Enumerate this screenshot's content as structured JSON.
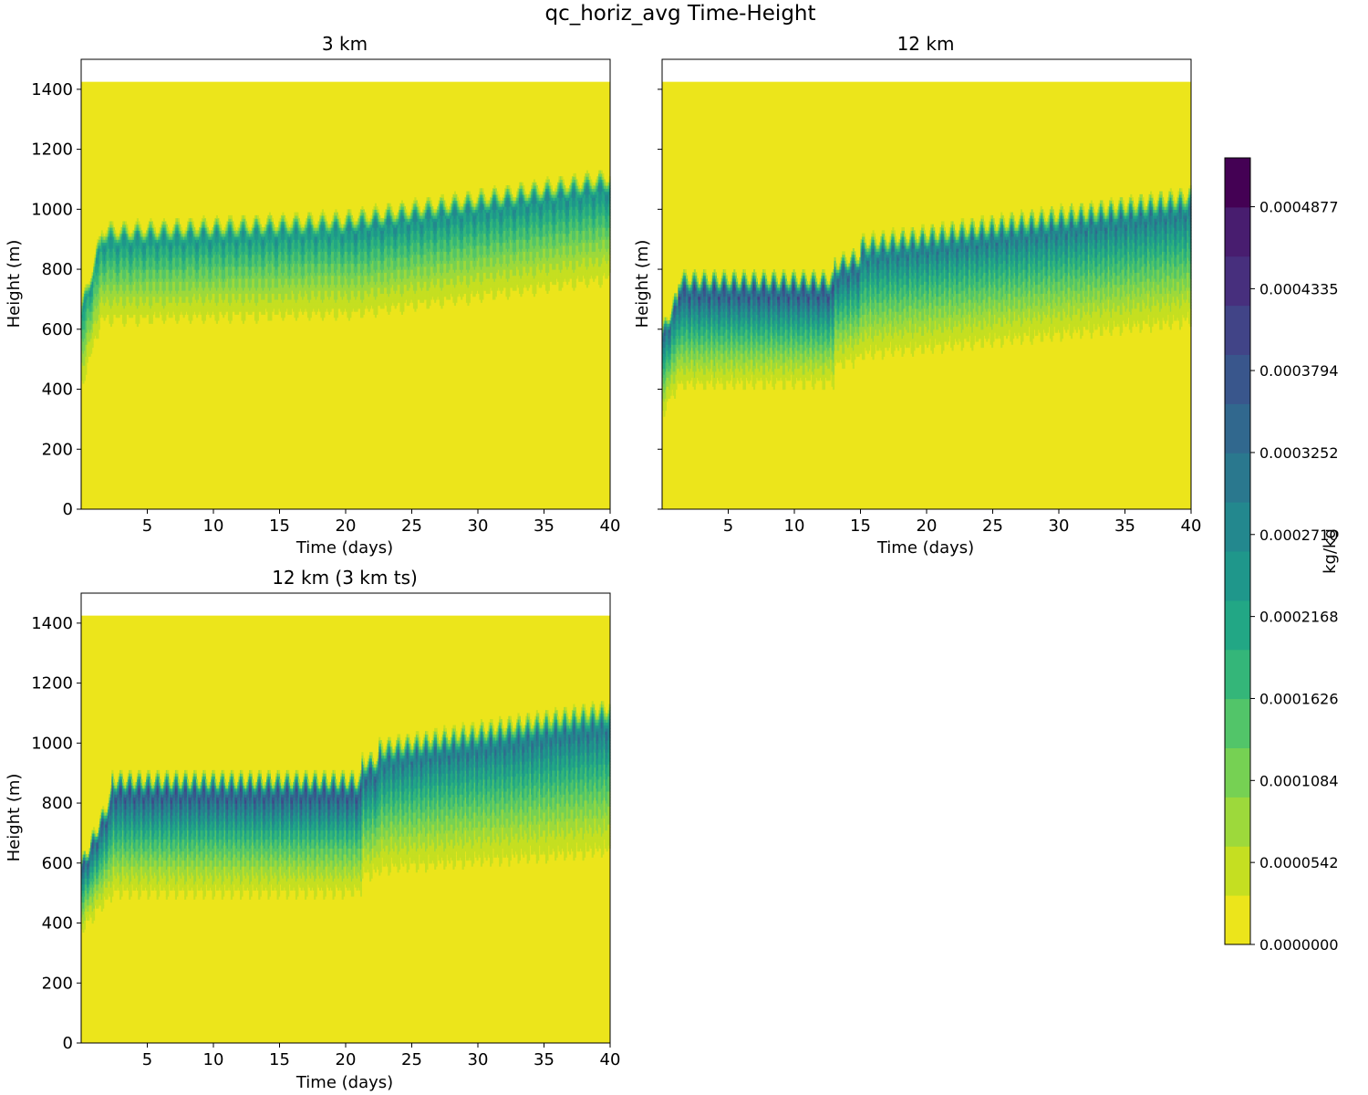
{
  "figure": {
    "title": "qc_horiz_avg Time-Height"
  },
  "colorbar": {
    "label": "kg/kg",
    "range": [
      0.0,
      0.00052
    ],
    "levels": 19,
    "tick_values": [
      0.0,
      5.42e-05,
      0.0001084,
      0.0001626,
      0.0002168,
      0.000271,
      0.0003252,
      0.0003794,
      0.0004335,
      0.0004877
    ],
    "tick_labels": [
      "0.0000000",
      "0.0000542",
      "0.0001084",
      "0.0001626",
      "0.0002168",
      "0.0002710",
      "0.0003252",
      "0.0003794",
      "0.0004335",
      "0.0004877"
    ],
    "colors": [
      "#ece51b",
      "#c5df21",
      "#9dd93b",
      "#76d153",
      "#52c569",
      "#34b679",
      "#22a785",
      "#1f978b",
      "#23888e",
      "#2a788e",
      "#31688e",
      "#39568c",
      "#414487",
      "#472f7d",
      "#481d6f",
      "#440154"
    ]
  },
  "chart_data": [
    {
      "type": "heatmap",
      "id": "p3km",
      "title": "3 km",
      "xlabel": "Time (days)",
      "ylabel": "Height (m)",
      "xlim": [
        0,
        40
      ],
      "ylim": [
        0,
        1500
      ],
      "xticks": [
        5,
        10,
        15,
        20,
        25,
        30,
        35,
        40
      ],
      "yticks": [
        0,
        200,
        400,
        600,
        800,
        1000,
        1200,
        1400
      ],
      "show_ytick_labels": true,
      "domain_top": 1425,
      "oscillation_period_days": 1,
      "segments": [
        {
          "t0": 0.0,
          "t1": 1.5,
          "base": [
            330,
            540
          ],
          "top": [
            680,
            920
          ],
          "peak": 0.00032
        },
        {
          "t0": 1.5,
          "t1": 20.0,
          "base": [
            540,
            555
          ],
          "top": [
            940,
            980
          ],
          "peak": 0.00034
        },
        {
          "t0": 20.0,
          "t1": 40.0,
          "base": [
            555,
            670
          ],
          "top": [
            980,
            1120
          ],
          "peak": 0.00036
        }
      ]
    },
    {
      "type": "heatmap",
      "id": "p12km",
      "title": "12 km",
      "xlabel": "Time (days)",
      "ylabel": "Height (m)",
      "xlim": [
        0,
        40
      ],
      "ylim": [
        0,
        1500
      ],
      "xticks": [
        5,
        10,
        15,
        20,
        25,
        30,
        35,
        40
      ],
      "yticks": [
        0,
        200,
        400,
        600,
        800,
        1000,
        1200,
        1400
      ],
      "show_ytick_labels": false,
      "domain_top": 1425,
      "oscillation_period_days": 0.75,
      "segments": [
        {
          "t0": 0.0,
          "t1": 1.2,
          "base": [
            260,
            340
          ],
          "top": [
            600,
            730
          ],
          "peak": 0.00046
        },
        {
          "t0": 1.2,
          "t1": 13.0,
          "base": [
            340,
            345
          ],
          "top": [
            780,
            780
          ],
          "peak": 0.00051
        },
        {
          "t0": 13.0,
          "t1": 15.0,
          "base": [
            400,
            420
          ],
          "top": [
            830,
            860
          ],
          "peak": 0.00046
        },
        {
          "t0": 15.0,
          "t1": 40.0,
          "base": [
            420,
            520
          ],
          "top": [
            900,
            1060
          ],
          "peak": 0.00042
        }
      ]
    },
    {
      "type": "heatmap",
      "id": "p12km3ts",
      "title": "12 km (3 km ts)",
      "xlabel": "Time (days)",
      "ylabel": "Height (m)",
      "xlim": [
        0,
        40
      ],
      "ylim": [
        0,
        1500
      ],
      "xticks": [
        5,
        10,
        15,
        20,
        25,
        30,
        35,
        40
      ],
      "yticks": [
        0,
        200,
        400,
        600,
        800,
        1000,
        1200,
        1400
      ],
      "show_ytick_labels": true,
      "domain_top": 1425,
      "oscillation_period_days": 0.7,
      "segments": [
        {
          "t0": 0.0,
          "t1": 2.3,
          "base": [
            330,
            420
          ],
          "top": [
            600,
            840
          ],
          "peak": 0.00048
        },
        {
          "t0": 2.3,
          "t1": 21.2,
          "base": [
            420,
            425
          ],
          "top": [
            890,
            890
          ],
          "peak": 0.00051
        },
        {
          "t0": 21.2,
          "t1": 22.5,
          "base": [
            470,
            480
          ],
          "top": [
            950,
            960
          ],
          "peak": 0.00047
        },
        {
          "t0": 22.5,
          "t1": 40.0,
          "base": [
            480,
            520
          ],
          "top": [
            1000,
            1130
          ],
          "peak": 0.00043
        }
      ]
    }
  ]
}
